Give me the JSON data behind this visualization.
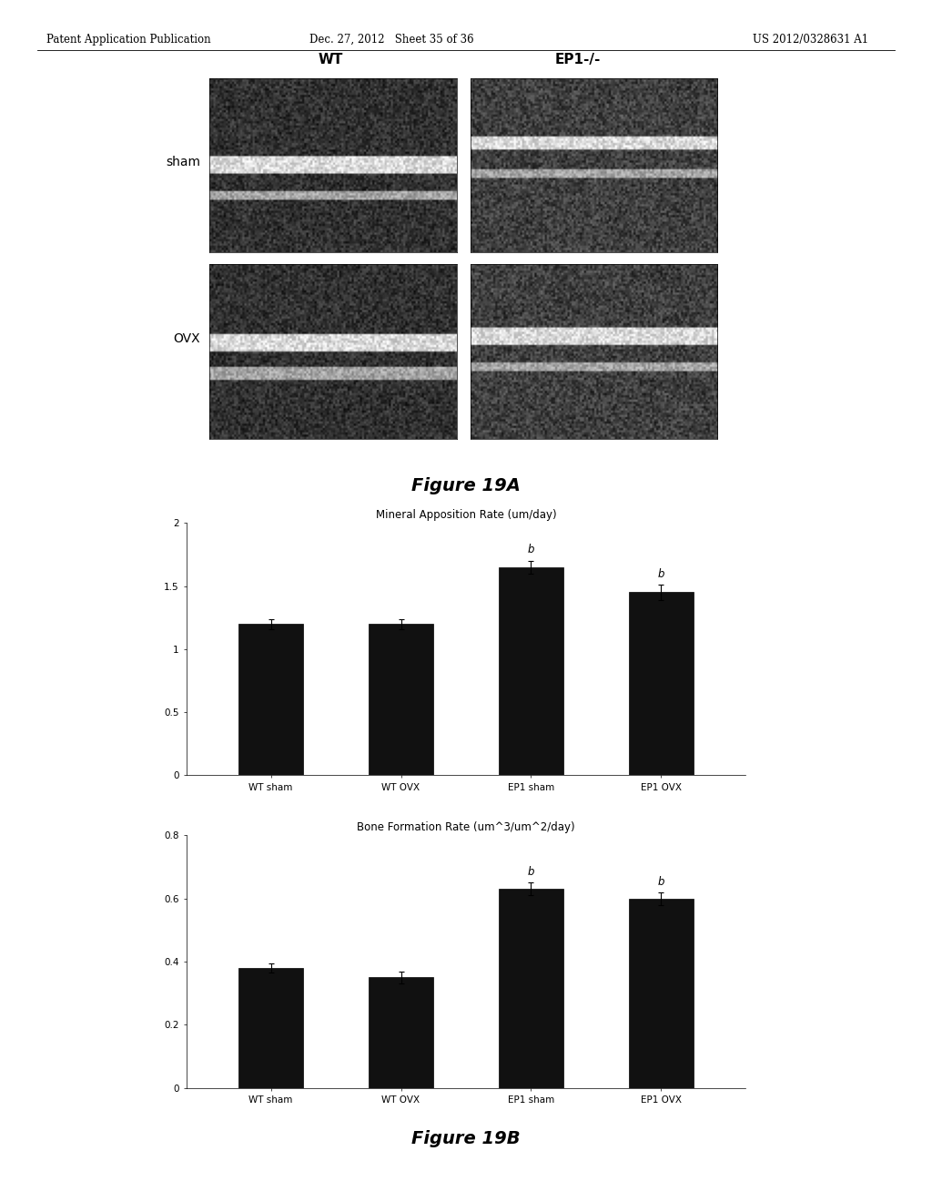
{
  "header_left": "Patent Application Publication",
  "header_center": "Dec. 27, 2012   Sheet 35 of 36",
  "header_right": "US 2012/0328631 A1",
  "col_labels": [
    "WT",
    "EP1-/-"
  ],
  "row_labels": [
    "sham",
    "OVX"
  ],
  "figure_19A_caption": "Figure 19A",
  "mar_title": "Mineral Apposition Rate (um/day)",
  "mar_categories": [
    "WT sham",
    "WT OVX",
    "EP1 sham",
    "EP1 OVX"
  ],
  "mar_values": [
    1.2,
    1.2,
    1.65,
    1.45
  ],
  "mar_errors": [
    0.04,
    0.04,
    0.05,
    0.06
  ],
  "mar_ylim": [
    0,
    2
  ],
  "mar_yticks": [
    0,
    0.5,
    1.0,
    1.5,
    2.0
  ],
  "mar_ytick_labels": [
    "0",
    "0.5",
    "1",
    "1.5",
    "2"
  ],
  "mar_sig_bars": [
    2,
    3
  ],
  "mar_sig_label": "b",
  "bfr_title": "Bone Formation Rate (um^3/um^2/day)",
  "bfr_categories": [
    "WT sham",
    "WT OVX",
    "EP1 sham",
    "EP1 OVX"
  ],
  "bfr_values": [
    0.38,
    0.35,
    0.63,
    0.6
  ],
  "bfr_errors": [
    0.015,
    0.018,
    0.02,
    0.02
  ],
  "bfr_ylim": [
    0,
    0.8
  ],
  "bfr_yticks": [
    0,
    0.2,
    0.4,
    0.6,
    0.8
  ],
  "bfr_ytick_labels": [
    "0",
    "0.2",
    "0.4",
    "0.6",
    "0.8"
  ],
  "bfr_sig_bars": [
    2,
    3
  ],
  "bfr_sig_label": "b",
  "figure_19B_caption": "Figure 19B",
  "bar_color": "#111111",
  "bar_width": 0.5,
  "bar_edge_color": "#000000",
  "error_color": "#000000",
  "background_color": "#ffffff",
  "text_color": "#000000",
  "title_fontsize": 8.5,
  "tick_fontsize": 7.5,
  "xlabel_fontsize": 7.5,
  "caption_fontsize": 14,
  "sig_fontsize": 8.5,
  "header_fontsize": 8.5,
  "col_label_fontsize": 11,
  "row_label_fontsize": 10
}
